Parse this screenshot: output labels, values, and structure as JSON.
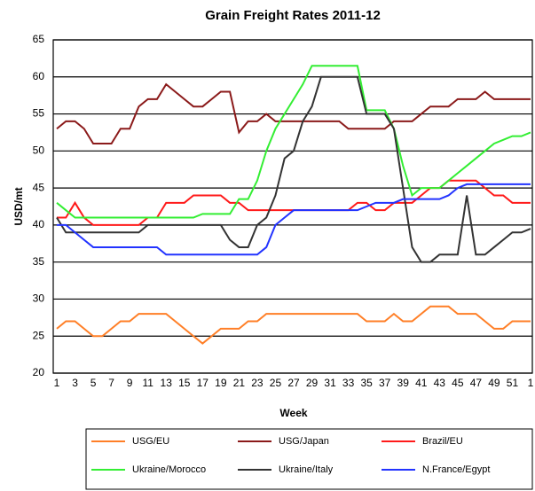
{
  "chart_data": {
    "type": "line",
    "title": "Grain Freight Rates 2011-12",
    "y_label": "USD/mt",
    "x_label": "Week",
    "categories": [
      "1",
      null,
      "3",
      null,
      "5",
      null,
      "7",
      null,
      "9",
      null,
      "11",
      null,
      "13",
      null,
      "15",
      null,
      "17",
      null,
      "19",
      null,
      "21",
      null,
      "23",
      null,
      "25",
      null,
      "27",
      null,
      "29",
      null,
      "31",
      null,
      "33",
      null,
      "35",
      null,
      "37",
      null,
      "39",
      null,
      "41",
      null,
      "43",
      null,
      "45",
      null,
      "47",
      null,
      "49",
      null,
      "51",
      null,
      "1"
    ],
    "ylim": [
      20,
      65
    ],
    "yticks": [
      20,
      25,
      30,
      35,
      40,
      45,
      50,
      55,
      60,
      65
    ],
    "grid": true,
    "legend": "bottom",
    "series": [
      {
        "name": "USG/EU",
        "color": "#ff7f27",
        "values": [
          26,
          27,
          27,
          26,
          25,
          25,
          26,
          27,
          27,
          28,
          28,
          28,
          28,
          27,
          26,
          25,
          24,
          25,
          26,
          26,
          26,
          27,
          27,
          28,
          28,
          28,
          28,
          28,
          28,
          28,
          28,
          28,
          28,
          28,
          27,
          27,
          27,
          28,
          27,
          27,
          28,
          29,
          29,
          29,
          28,
          28,
          28,
          27,
          26,
          26,
          27,
          27,
          27
        ]
      },
      {
        "name": "USG/Japan",
        "color": "#8b1a1a",
        "values": [
          53,
          54,
          54,
          53,
          51,
          51,
          51,
          53,
          53,
          56,
          57,
          57,
          59,
          58,
          57,
          56,
          56,
          57,
          58,
          58,
          52.5,
          54,
          54,
          55,
          54,
          54,
          54,
          54,
          54,
          54,
          54,
          54,
          53,
          53,
          53,
          53,
          53,
          54,
          54,
          54,
          55,
          56,
          56,
          56,
          57,
          57,
          57,
          58,
          57,
          57,
          57,
          57,
          57
        ]
      },
      {
        "name": "Brazil/EU",
        "color": "#ff1a1a",
        "values": [
          41,
          41,
          43,
          41,
          40,
          40,
          40,
          40,
          40,
          40,
          41,
          41,
          43,
          43,
          43,
          44,
          44,
          44,
          44,
          43,
          43,
          42,
          42,
          42,
          42,
          42,
          42,
          42,
          42,
          42,
          42,
          42,
          42,
          43,
          43,
          42,
          42,
          43,
          43,
          43,
          44,
          45,
          45,
          46,
          46,
          46,
          46,
          45,
          44,
          44,
          43,
          43,
          43
        ]
      },
      {
        "name": "Ukraine/Morocco",
        "color": "#33ee33",
        "values": [
          43,
          42,
          41,
          41,
          41,
          41,
          41,
          41,
          41,
          41,
          41,
          41,
          41,
          41,
          41,
          41,
          41.5,
          41.5,
          41.5,
          41.5,
          43.5,
          43.5,
          46,
          50,
          53,
          55,
          57,
          59,
          61.5,
          61.5,
          61.5,
          61.5,
          61.5,
          61.5,
          55.5,
          55.5,
          55.5,
          53,
          48,
          44,
          45,
          45,
          45,
          46,
          47,
          48,
          49,
          50,
          51,
          51.5,
          52,
          52,
          52.5
        ]
      },
      {
        "name": "Ukraine/Italy",
        "color": "#333333",
        "values": [
          41,
          39,
          39,
          39,
          39,
          39,
          39,
          39,
          39,
          39,
          40,
          40,
          40,
          40,
          40,
          40,
          40,
          40,
          40,
          38,
          37,
          37,
          40,
          41,
          44,
          49,
          50,
          54,
          56,
          60,
          60,
          60,
          60,
          60,
          55,
          55,
          55,
          53,
          45,
          37,
          35,
          35,
          36,
          36,
          36,
          44,
          36,
          36,
          37,
          38,
          39,
          39,
          39.5
        ]
      },
      {
        "name": "N.France/Egypt",
        "color": "#2233ff",
        "values": [
          40,
          40,
          39,
          38,
          37,
          37,
          37,
          37,
          37,
          37,
          37,
          37,
          36,
          36,
          36,
          36,
          36,
          36,
          36,
          36,
          36,
          36,
          36,
          37,
          40,
          41,
          42,
          42,
          42,
          42,
          42,
          42,
          42,
          42,
          42.5,
          43,
          43,
          43,
          43.5,
          43.5,
          43.5,
          43.5,
          43.5,
          44,
          45,
          45.5,
          45.5,
          45.5,
          45.5,
          45.5,
          45.5,
          45.5,
          45.5
        ]
      }
    ]
  }
}
